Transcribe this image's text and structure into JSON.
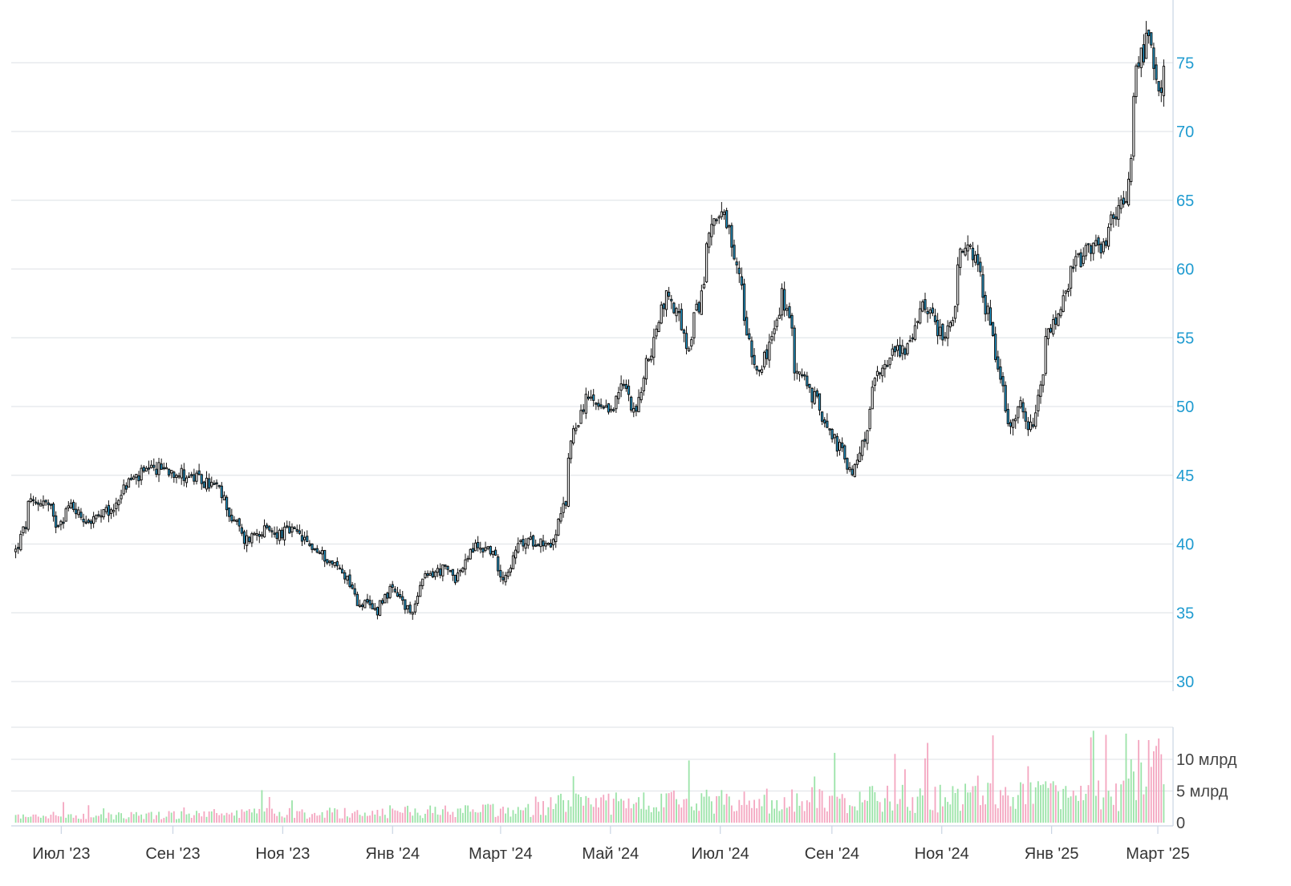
{
  "chart_data": {
    "type": "candlestick",
    "start": "2023-06-05",
    "end": "2025-03-05",
    "price": {
      "yticks": [
        30,
        35,
        40,
        45,
        50,
        55,
        60,
        65,
        70,
        75
      ],
      "tick_labels": [
        "30",
        "35",
        "40",
        "45",
        "50",
        "55",
        "60",
        "65",
        "70",
        "75"
      ],
      "anchors": [
        [
          "2023-06-05",
          39.5
        ],
        [
          "2023-06-12",
          42.8
        ],
        [
          "2023-06-20",
          43.2
        ],
        [
          "2023-06-27",
          41.5
        ],
        [
          "2023-07-05",
          42.8
        ],
        [
          "2023-07-15",
          41.6
        ],
        [
          "2023-07-28",
          42.4
        ],
        [
          "2023-08-05",
          44.5
        ],
        [
          "2023-08-15",
          45.1
        ],
        [
          "2023-08-25",
          45.6
        ],
        [
          "2023-09-05",
          45.1
        ],
        [
          "2023-09-15",
          44.6
        ],
        [
          "2023-09-25",
          44.1
        ],
        [
          "2023-10-01",
          42.3
        ],
        [
          "2023-10-10",
          40.3
        ],
        [
          "2023-10-18",
          41.0
        ],
        [
          "2023-10-28",
          40.7
        ],
        [
          "2023-11-05",
          41.0
        ],
        [
          "2023-11-15",
          39.9
        ],
        [
          "2023-11-25",
          38.9
        ],
        [
          "2023-12-05",
          37.8
        ],
        [
          "2023-12-12",
          35.8
        ],
        [
          "2023-12-22",
          35.2
        ],
        [
          "2023-12-30",
          36.8
        ],
        [
          "2024-01-10",
          35.0
        ],
        [
          "2024-01-18",
          37.5
        ],
        [
          "2024-01-28",
          38.2
        ],
        [
          "2024-02-05",
          37.6
        ],
        [
          "2024-02-15",
          39.8
        ],
        [
          "2024-02-25",
          39.6
        ],
        [
          "2024-03-02",
          37.2
        ],
        [
          "2024-03-10",
          39.9
        ],
        [
          "2024-03-20",
          40.3
        ],
        [
          "2024-03-30",
          40.0
        ],
        [
          "2024-04-05",
          43.0
        ],
        [
          "2024-04-10",
          48.5
        ],
        [
          "2024-04-18",
          50.6
        ],
        [
          "2024-04-28",
          49.3
        ],
        [
          "2024-05-08",
          51.5
        ],
        [
          "2024-05-15",
          49.8
        ],
        [
          "2024-05-22",
          53.5
        ],
        [
          "2024-06-01",
          58.6
        ],
        [
          "2024-06-08",
          56.2
        ],
        [
          "2024-06-13",
          54.0
        ],
        [
          "2024-06-20",
          58.0
        ],
        [
          "2024-06-26",
          63.8
        ],
        [
          "2024-07-03",
          63.5
        ],
        [
          "2024-07-12",
          59.0
        ],
        [
          "2024-07-20",
          52.5
        ],
        [
          "2024-07-28",
          54.0
        ],
        [
          "2024-08-05",
          58.2
        ],
        [
          "2024-08-12",
          53.0
        ],
        [
          "2024-08-20",
          51.0
        ],
        [
          "2024-08-28",
          49.2
        ],
        [
          "2024-09-05",
          47.0
        ],
        [
          "2024-09-12",
          45.0
        ],
        [
          "2024-09-20",
          48.0
        ],
        [
          "2024-09-26",
          52.5
        ],
        [
          "2024-10-05",
          54.0
        ],
        [
          "2024-10-15",
          54.5
        ],
        [
          "2024-10-22",
          57.8
        ],
        [
          "2024-11-01",
          55.2
        ],
        [
          "2024-11-06",
          55.6
        ],
        [
          "2024-11-12",
          60.8
        ],
        [
          "2024-11-18",
          61.8
        ],
        [
          "2024-11-25",
          57.8
        ],
        [
          "2024-12-02",
          54.0
        ],
        [
          "2024-12-08",
          48.2
        ],
        [
          "2024-12-15",
          50.5
        ],
        [
          "2024-12-22",
          47.5
        ],
        [
          "2024-12-30",
          55.0
        ],
        [
          "2025-01-08",
          57.5
        ],
        [
          "2025-01-15",
          60.5
        ],
        [
          "2025-01-25",
          61.5
        ],
        [
          "2025-02-01",
          61.8
        ],
        [
          "2025-02-06",
          64.3
        ],
        [
          "2025-02-12",
          64.5
        ],
        [
          "2025-02-18",
          74.8
        ],
        [
          "2025-02-25",
          76.8
        ],
        [
          "2025-03-01",
          71.8
        ],
        [
          "2025-03-05",
          74.0
        ]
      ]
    },
    "volume": {
      "yticks": [
        0,
        5000000000,
        10000000000
      ],
      "tick_labels": [
        "0",
        "5 млрд",
        "10 млрд"
      ]
    },
    "x_ticks": [
      {
        "label": "Июл '23",
        "date": "2023-07-01"
      },
      {
        "label": "Сен '23",
        "date": "2023-09-01"
      },
      {
        "label": "Ноя '23",
        "date": "2023-11-01"
      },
      {
        "label": "Янв '24",
        "date": "2024-01-01"
      },
      {
        "label": "Март '24",
        "date": "2024-03-01"
      },
      {
        "label": "Май '24",
        "date": "2024-05-01"
      },
      {
        "label": "Июл '24",
        "date": "2024-07-01"
      },
      {
        "label": "Сен '24",
        "date": "2024-09-01"
      },
      {
        "label": "Ноя '24",
        "date": "2024-11-01"
      },
      {
        "label": "Янв '25",
        "date": "2025-01-01"
      },
      {
        "label": "Март '25",
        "date": "2025-03-01"
      }
    ],
    "colors": {
      "up_body": "#ffffff",
      "down_body": "#1f9bd0",
      "candle_outline": "#111111",
      "volume_up": "#9be3a8",
      "volume_down": "#f4a6c0",
      "price_axis_labels": "#1f9bd0",
      "grid": "#e3e6ea"
    }
  }
}
